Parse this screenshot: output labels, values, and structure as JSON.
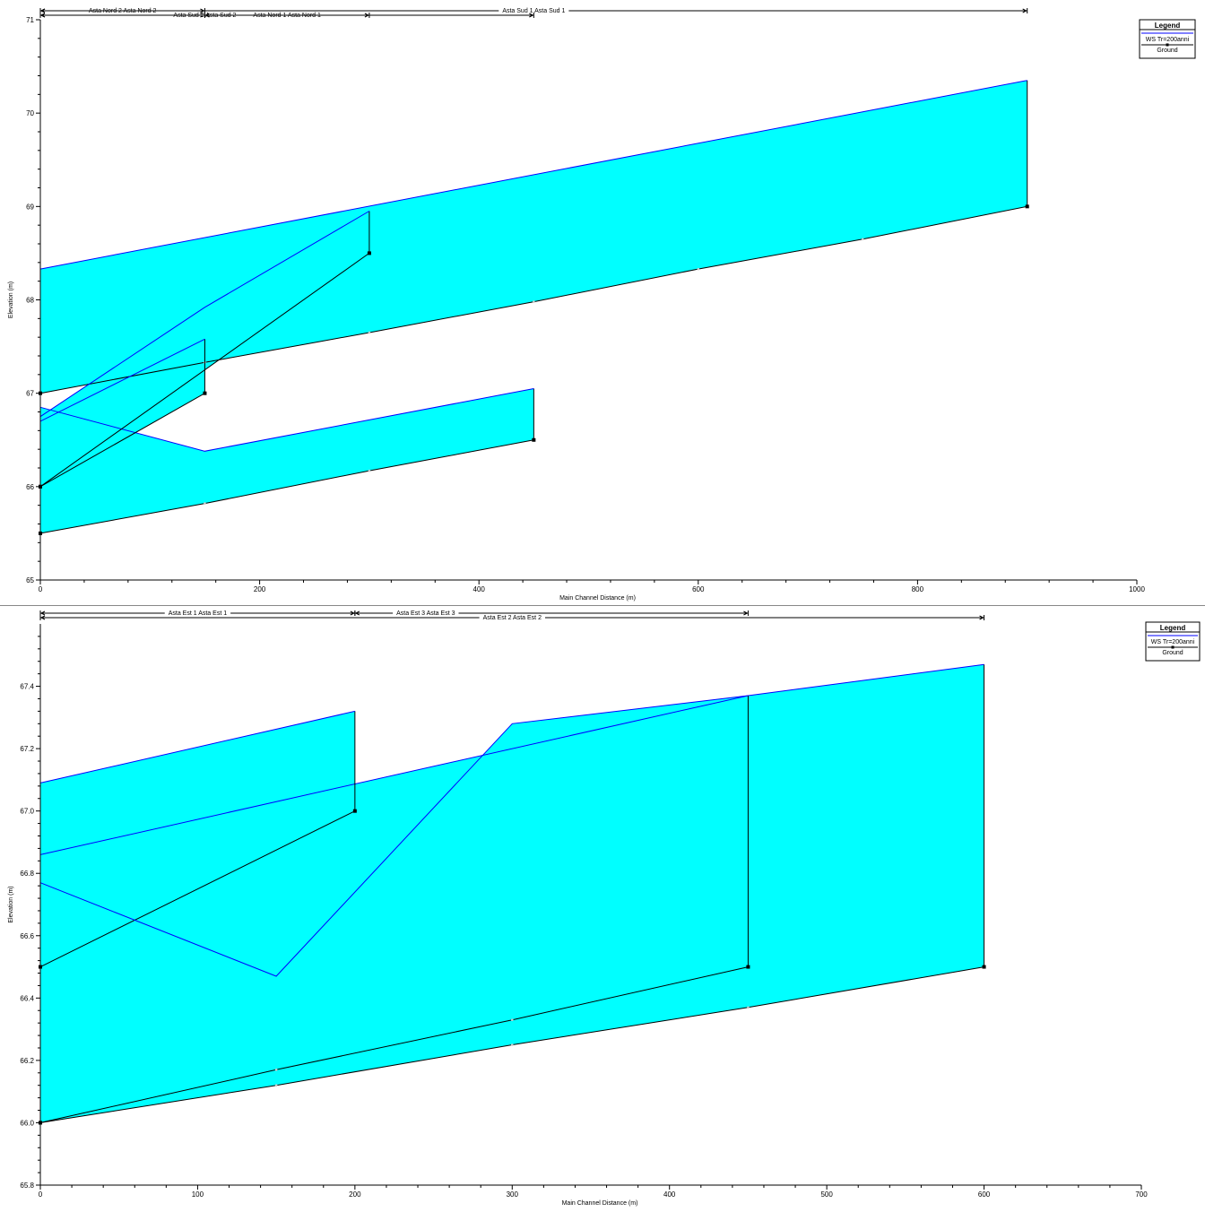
{
  "colors": {
    "water": "#00ffff",
    "ws_line": "#0000ff",
    "ground": "#000000"
  },
  "chart_data": [
    {
      "type": "line",
      "xlabel": "Main Channel Distance (m)",
      "ylabel": "Elevation (m)",
      "xlim": [
        0,
        1000
      ],
      "ylim": [
        65,
        71
      ],
      "xticks": [
        0,
        200,
        400,
        600,
        800,
        1000
      ],
      "xtick_labels": [
        "0",
        "200",
        "400",
        "600",
        "800",
        "1000"
      ],
      "yticks": [
        65,
        66,
        67,
        68,
        69,
        70,
        71
      ],
      "ytick_labels": [
        "65",
        "66",
        "67",
        "68",
        "69",
        "70",
        "71"
      ],
      "grid": false,
      "legend": {
        "title": "Legend",
        "entries": [
          "WS  Tr=200anni",
          "Ground"
        ],
        "placement": "top-right"
      },
      "reaches": [
        {
          "label": "Asta Nord 2 Asta Nord 2",
          "x_start": 0,
          "x_end": 150,
          "row": 0,
          "label_x": 75
        },
        {
          "label": "Asta Sud 2 Asta Sud 2",
          "x_start": 0,
          "x_end": 150,
          "row": 1,
          "label_x": 150
        },
        {
          "label": "Asta Nord 1 Asta Nord 1",
          "x_start": 150,
          "x_end": 300,
          "row": 1,
          "label_x": 225
        },
        {
          "label": "Asta Sud 1 Asta Sud 1",
          "x_start": 0,
          "x_end": 450,
          "row": 1,
          "label_x": null
        },
        {
          "label": "Asta Sud 1 Asta Sud 1",
          "x_start": 0,
          "x_end": 900,
          "row": 0,
          "label_x": 450
        }
      ],
      "series": [
        {
          "ground": [
            [
              0,
              67.0
            ],
            [
              150,
              67.33
            ],
            [
              300,
              67.65
            ],
            [
              450,
              67.98
            ],
            [
              600,
              68.33
            ],
            [
              750,
              68.65
            ],
            [
              900,
              69.0
            ]
          ],
          "ws": [
            [
              0,
              68.33
            ],
            [
              900,
              70.35
            ]
          ]
        },
        {
          "ground": [
            [
              0,
              65.5
            ],
            [
              150,
              65.82
            ],
            [
              300,
              66.17
            ],
            [
              450,
              66.5
            ]
          ],
          "ws": [
            [
              0,
              66.85
            ],
            [
              150,
              66.38
            ],
            [
              450,
              67.05
            ]
          ]
        },
        {
          "ground": [
            [
              0,
              66.0
            ],
            [
              150,
              67.0
            ]
          ],
          "ws": [
            [
              0,
              66.7
            ],
            [
              150,
              67.58
            ]
          ]
        },
        {
          "ground": [
            [
              0,
              66.0
            ],
            [
              300,
              68.5
            ]
          ],
          "ws": [
            [
              0,
              66.75
            ],
            [
              150,
              67.92
            ],
            [
              300,
              68.95
            ]
          ]
        }
      ]
    },
    {
      "type": "line",
      "xlabel": "Main Channel Distance (m)",
      "ylabel": "Elevation (m)",
      "xlim": [
        0,
        700
      ],
      "ylim": [
        65.8,
        67.6
      ],
      "xticks": [
        0,
        100,
        200,
        300,
        400,
        500,
        600,
        700
      ],
      "xtick_labels": [
        "0",
        "100",
        "200",
        "300",
        "400",
        "500",
        "600",
        "700"
      ],
      "yticks": [
        65.8,
        66.0,
        66.2,
        66.4,
        66.6,
        66.8,
        67.0,
        67.2,
        67.4
      ],
      "ytick_labels": [
        "65.8",
        "66.0",
        "66.2",
        "66.4",
        "66.6",
        "66.8",
        "67.0",
        "67.2",
        "67.4"
      ],
      "grid": false,
      "legend": {
        "title": "Legend",
        "entries": [
          "WS  Tr=200anni",
          "Ground"
        ],
        "placement": "top-right"
      },
      "reaches": [
        {
          "label": "Asta Est 1 Asta Est 1",
          "x_start": 0,
          "x_end": 200,
          "row": 0,
          "label_x": 100
        },
        {
          "label": "Asta Est 3 Asta Est 3",
          "x_start": 200,
          "x_end": 450,
          "row": 0,
          "label_x": 245
        },
        {
          "label": "Asta Est 2 Asta Est 2",
          "x_start": 0,
          "x_end": 600,
          "row": 1,
          "label_x": 300
        }
      ],
      "series": [
        {
          "ground": [
            [
              0,
              66.0
            ],
            [
              150,
              66.12
            ],
            [
              300,
              66.25
            ],
            [
              450,
              66.37
            ],
            [
              600,
              66.5
            ]
          ],
          "ws": [
            [
              0,
              66.86
            ],
            [
              450,
              67.37
            ],
            [
              600,
              67.47
            ]
          ]
        },
        {
          "ground": [
            [
              0,
              66.5
            ],
            [
              200,
              67.0
            ]
          ],
          "ws": [
            [
              0,
              67.09
            ],
            [
              200,
              67.32
            ]
          ]
        },
        {
          "ground": [
            [
              0,
              66.0
            ],
            [
              150,
              66.17
            ],
            [
              300,
              66.33
            ],
            [
              450,
              66.5
            ]
          ],
          "ws": [
            [
              0,
              66.77
            ],
            [
              150,
              66.47
            ],
            [
              300,
              67.28
            ],
            [
              450,
              67.37
            ]
          ]
        }
      ]
    }
  ]
}
